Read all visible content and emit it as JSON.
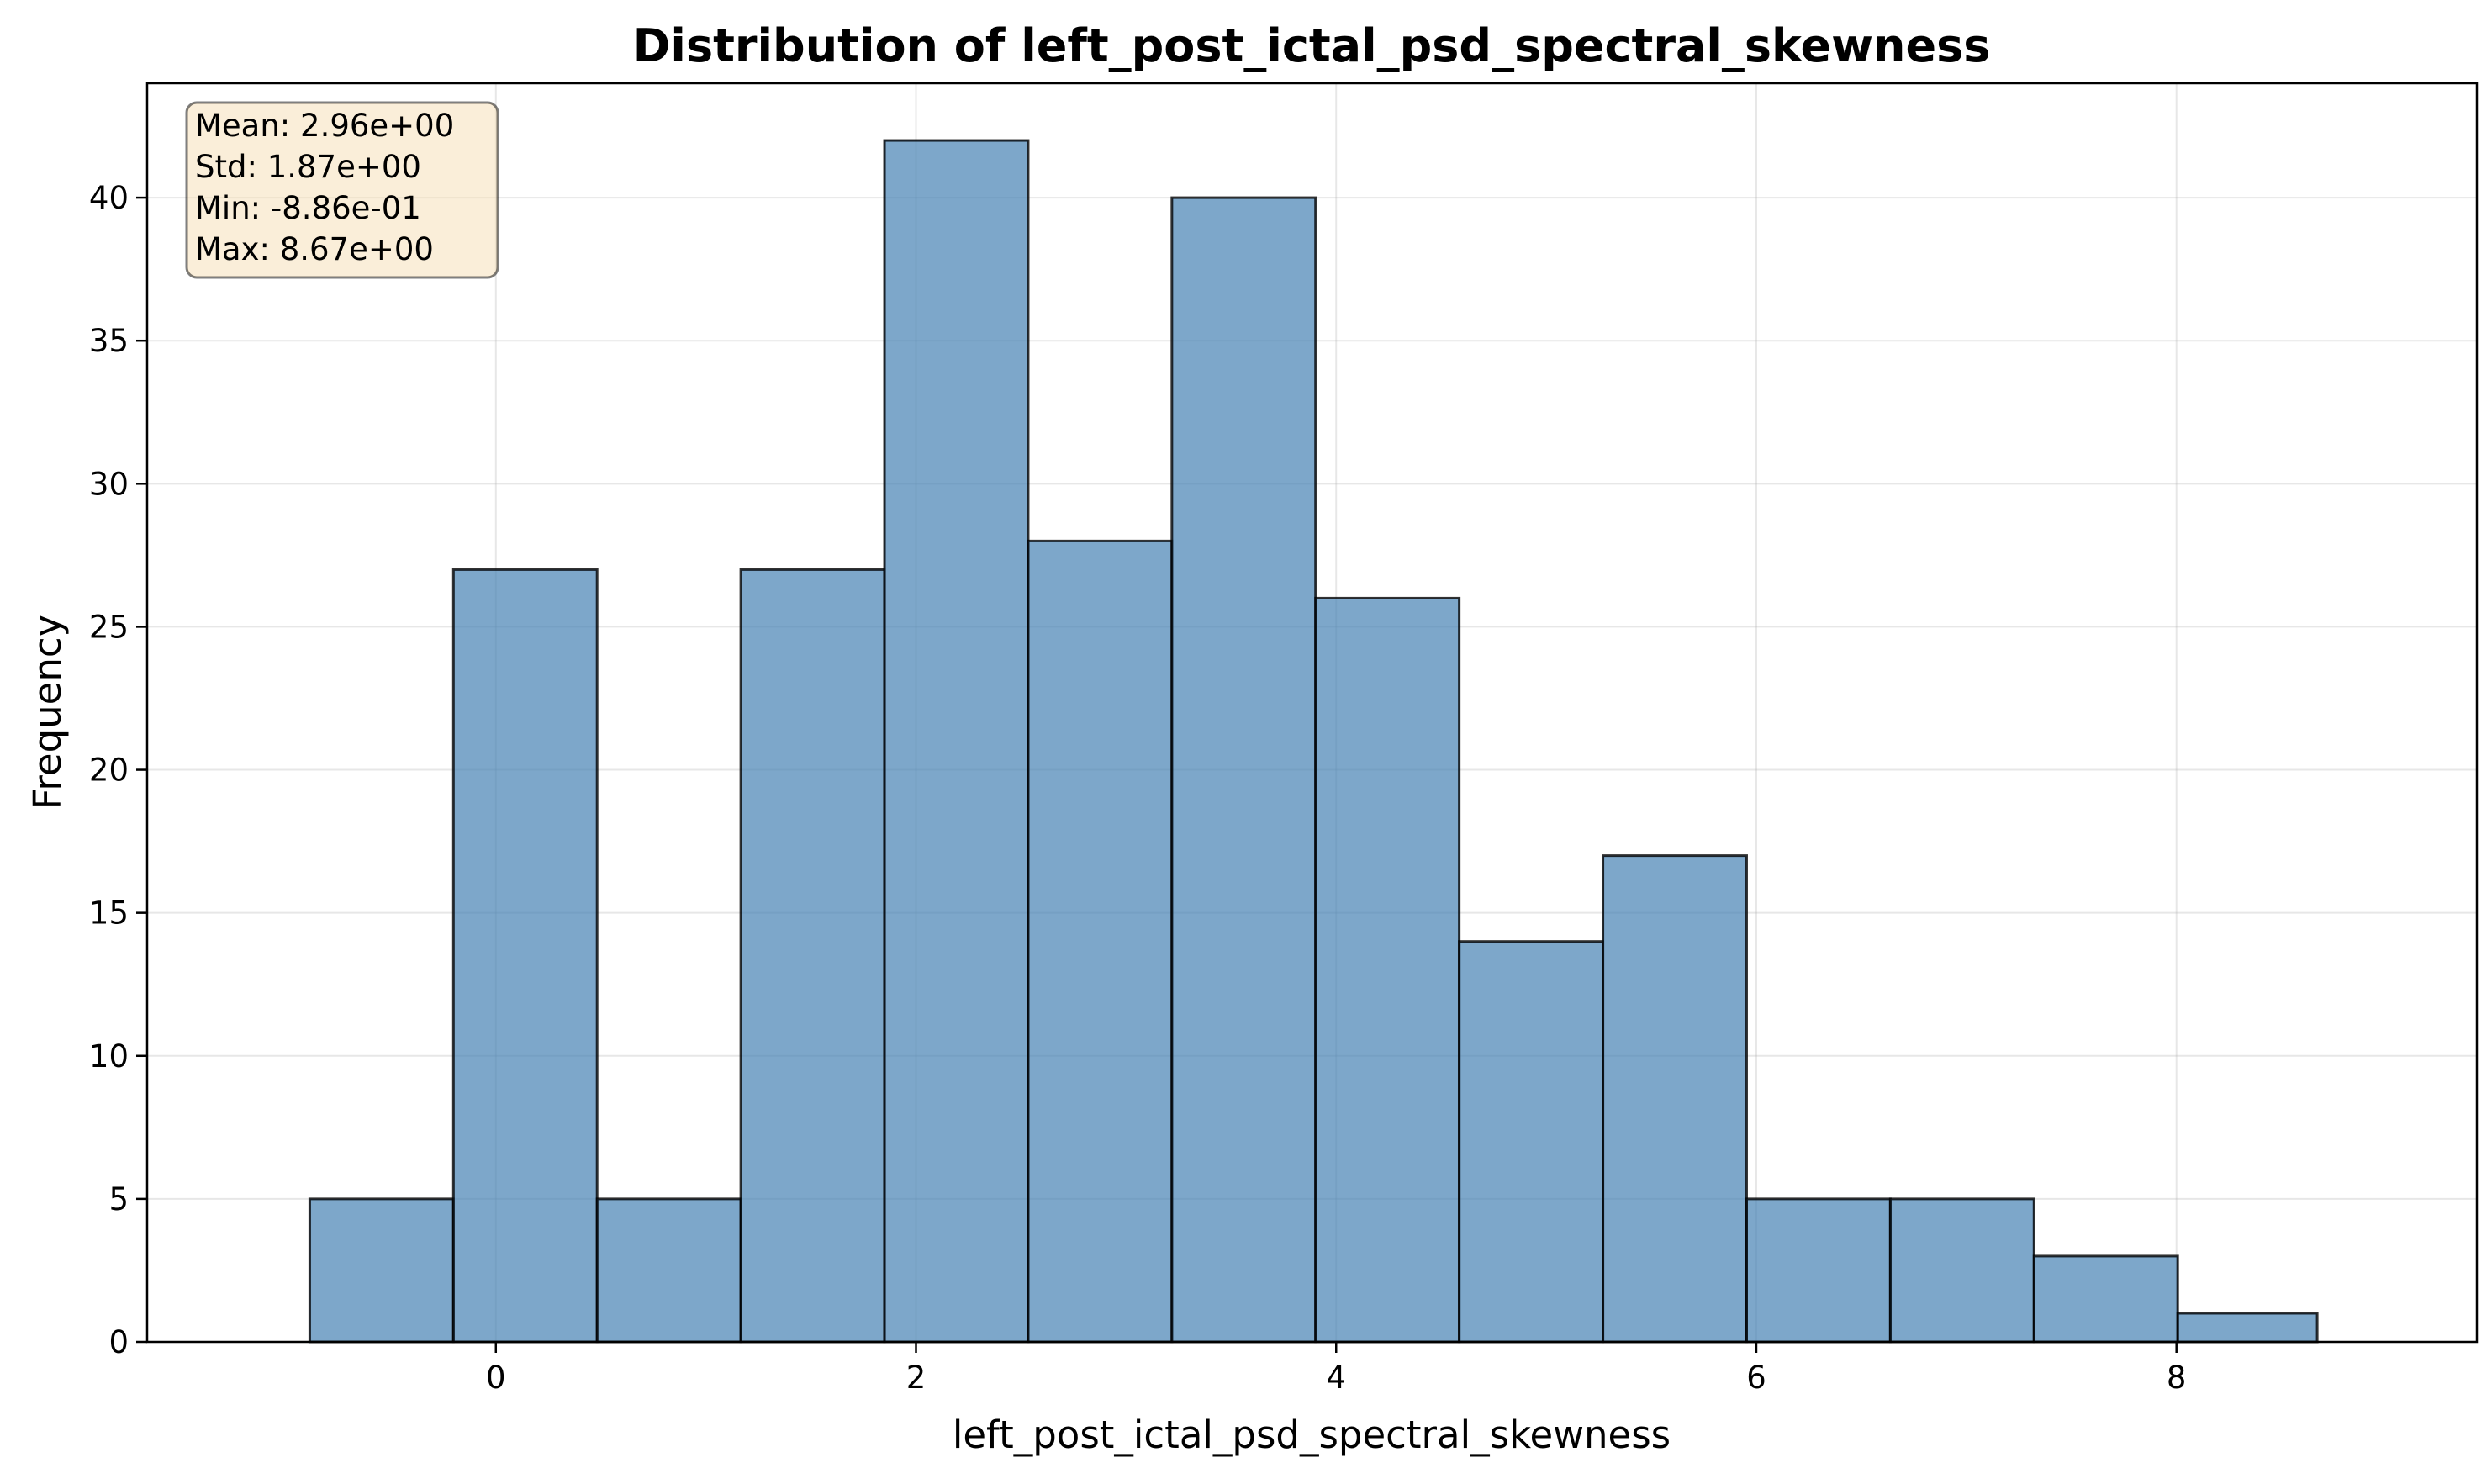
{
  "chart_data": {
    "type": "bar",
    "title": "Distribution of left_post_ictal_psd_spectral_skewness",
    "xlabel": "left_post_ictal_psd_spectral_skewness",
    "ylabel": "Frequency",
    "xlim": [
      -1.66,
      9.43
    ],
    "ylim": [
      0,
      44
    ],
    "xticks": [
      0,
      2,
      4,
      6,
      8
    ],
    "yticks": [
      0,
      5,
      10,
      15,
      20,
      25,
      30,
      35,
      40
    ],
    "grid": true,
    "bin_edges": [
      -0.886,
      -0.202,
      0.482,
      1.166,
      1.85,
      2.534,
      3.218,
      3.902,
      4.586,
      5.27,
      5.954,
      6.638,
      7.322,
      8.006,
      8.67
    ],
    "counts": [
      5,
      27,
      5,
      27,
      42,
      28,
      40,
      26,
      14,
      17,
      5,
      5,
      3,
      1
    ],
    "bar_color": "#4682b4",
    "stats": {
      "mean": "Mean: 2.96e+00",
      "std": "Std: 1.87e+00",
      "min": "Min: -8.86e-01",
      "max": "Max: 8.67e+00"
    },
    "stats_box_color": "#f5deb3"
  }
}
